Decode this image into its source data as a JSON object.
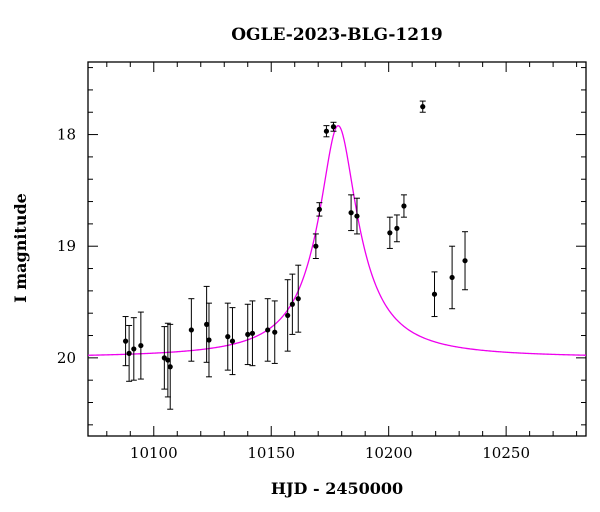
{
  "chart_data": {
    "type": "scatter",
    "title": "OGLE-2023-BLG-1219",
    "xlabel": "HJD - 2450000",
    "ylabel": "I magnitude",
    "xlim": [
      10072,
      10284
    ],
    "ylim": [
      20.7,
      17.35
    ],
    "y_inverted": true,
    "x_ticks": [
      10100,
      10150,
      10200,
      10250
    ],
    "x_tick_labels": [
      "10100",
      "10150",
      "10200",
      "10250"
    ],
    "y_ticks": [
      18,
      19,
      20
    ],
    "y_tick_labels": [
      "18",
      "19",
      "20"
    ],
    "grid": false,
    "colors": {
      "points": "#000000",
      "model": "#ee00ee",
      "frame": "#000000"
    },
    "series": [
      {
        "kind": "points_with_errorbars",
        "points": [
          {
            "x": 10088.0,
            "y": 19.85,
            "err": 0.22
          },
          {
            "x": 10089.5,
            "y": 19.96,
            "err": 0.25
          },
          {
            "x": 10091.5,
            "y": 19.92,
            "err": 0.28
          },
          {
            "x": 10094.5,
            "y": 19.89,
            "err": 0.3
          },
          {
            "x": 10104.5,
            "y": 20.0,
            "err": 0.28
          },
          {
            "x": 10106.0,
            "y": 20.02,
            "err": 0.33
          },
          {
            "x": 10107.0,
            "y": 20.08,
            "err": 0.38
          },
          {
            "x": 10116.0,
            "y": 19.75,
            "err": 0.28
          },
          {
            "x": 10122.5,
            "y": 19.7,
            "err": 0.34
          },
          {
            "x": 10123.5,
            "y": 19.84,
            "err": 0.33
          },
          {
            "x": 10131.5,
            "y": 19.81,
            "err": 0.3
          },
          {
            "x": 10133.5,
            "y": 19.85,
            "err": 0.3
          },
          {
            "x": 10140.0,
            "y": 19.79,
            "err": 0.27
          },
          {
            "x": 10142.0,
            "y": 19.78,
            "err": 0.29
          },
          {
            "x": 10148.5,
            "y": 19.75,
            "err": 0.28
          },
          {
            "x": 10151.5,
            "y": 19.77,
            "err": 0.28
          },
          {
            "x": 10157.0,
            "y": 19.62,
            "err": 0.32
          },
          {
            "x": 10159.0,
            "y": 19.52,
            "err": 0.27
          },
          {
            "x": 10161.5,
            "y": 19.47,
            "err": 0.3
          },
          {
            "x": 10169.0,
            "y": 19.0,
            "err": 0.11
          },
          {
            "x": 10170.5,
            "y": 18.67,
            "err": 0.06
          },
          {
            "x": 10173.5,
            "y": 17.97,
            "err": 0.05
          },
          {
            "x": 10176.5,
            "y": 17.93,
            "err": 0.04
          },
          {
            "x": 10184.0,
            "y": 18.7,
            "err": 0.16
          },
          {
            "x": 10186.5,
            "y": 18.73,
            "err": 0.16
          },
          {
            "x": 10200.5,
            "y": 18.88,
            "err": 0.14
          },
          {
            "x": 10203.5,
            "y": 18.84,
            "err": 0.12
          },
          {
            "x": 10206.5,
            "y": 18.64,
            "err": 0.1
          },
          {
            "x": 10214.5,
            "y": 17.75,
            "err": 0.05
          },
          {
            "x": 10219.5,
            "y": 19.43,
            "err": 0.2
          },
          {
            "x": 10227.0,
            "y": 19.28,
            "err": 0.28
          },
          {
            "x": 10232.5,
            "y": 19.13,
            "err": 0.26
          }
        ]
      },
      {
        "kind": "model_curve",
        "t0": 10178.5,
        "fwhm": 13,
        "baseline_mag": 20.0,
        "peak_mag": 17.92
      }
    ]
  }
}
